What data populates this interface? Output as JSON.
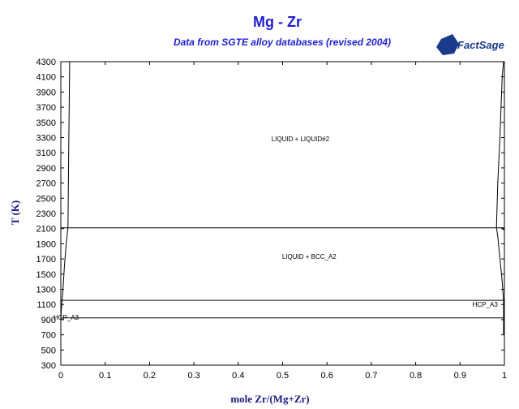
{
  "chart_data": {
    "type": "line",
    "title": "Mg - Zr",
    "subtitle": "Data from SGTE alloy databases (revised 2004)",
    "xlabel": "mole Zr/(Mg+Zr)",
    "ylabel": "T (K)",
    "xlim": [
      0,
      1
    ],
    "ylim": [
      300,
      4300
    ],
    "x_ticks": [
      "0",
      "0.1",
      "0.2",
      "0.3",
      "0.4",
      "0.5",
      "0.6",
      "0.7",
      "0.8",
      "0.9",
      "1"
    ],
    "y_ticks": [
      "300",
      "500",
      "700",
      "900",
      "1100",
      "1300",
      "1500",
      "1700",
      "1900",
      "2100",
      "2300",
      "2500",
      "2700",
      "2900",
      "3100",
      "3300",
      "3500",
      "3700",
      "3900",
      "4100",
      "4300"
    ],
    "grid": false,
    "series": [
      {
        "x": [
          0.0,
          0.002,
          0.005,
          0.008,
          0.012,
          0.016,
          0.018,
          0.02
        ],
        "y": [
          930,
          1100,
          1300,
          1600,
          1900,
          2110,
          3200,
          4300
        ]
      },
      {
        "x": [
          0.0,
          0.0,
          0.0
        ],
        "y": [
          620,
          800,
          930
        ]
      },
      {
        "x": [
          0.998,
          0.995,
          0.99,
          0.985,
          0.982
        ],
        "y": [
          1155,
          1400,
          1700,
          2000,
          2110
        ]
      },
      {
        "x": [
          0.982,
          0.985,
          0.99,
          0.993,
          0.995,
          0.998
        ],
        "y": [
          2110,
          2700,
          3300,
          3800,
          4100,
          4300
        ]
      },
      {
        "x": [
          0.995,
          0.997,
          1.0
        ],
        "y": [
          2100,
          2090,
          2080
        ]
      },
      {
        "x": [
          0.998,
          0.998
        ],
        "y": [
          700,
          1155
        ]
      },
      {
        "x": [
          0.0,
          1.0
        ],
        "y": [
          2110,
          2110
        ]
      },
      {
        "x": [
          0.0,
          1.0
        ],
        "y": [
          1155,
          1155
        ]
      },
      {
        "x": [
          0.0,
          1.0
        ],
        "y": [
          923,
          923
        ]
      }
    ],
    "annotations": [
      {
        "text": "LIQUID + LIQUID#2",
        "x": 0.54,
        "y": 3250
      },
      {
        "text": "LIQUID + BCC_A2",
        "x": 0.56,
        "y": 1700
      },
      {
        "text": "HCP_A3",
        "x": 0.985,
        "y": 1070
      },
      {
        "text": "HCP_A3",
        "x": 0.012,
        "y": 900
      }
    ]
  },
  "logo": {
    "text": "FactSage"
  }
}
